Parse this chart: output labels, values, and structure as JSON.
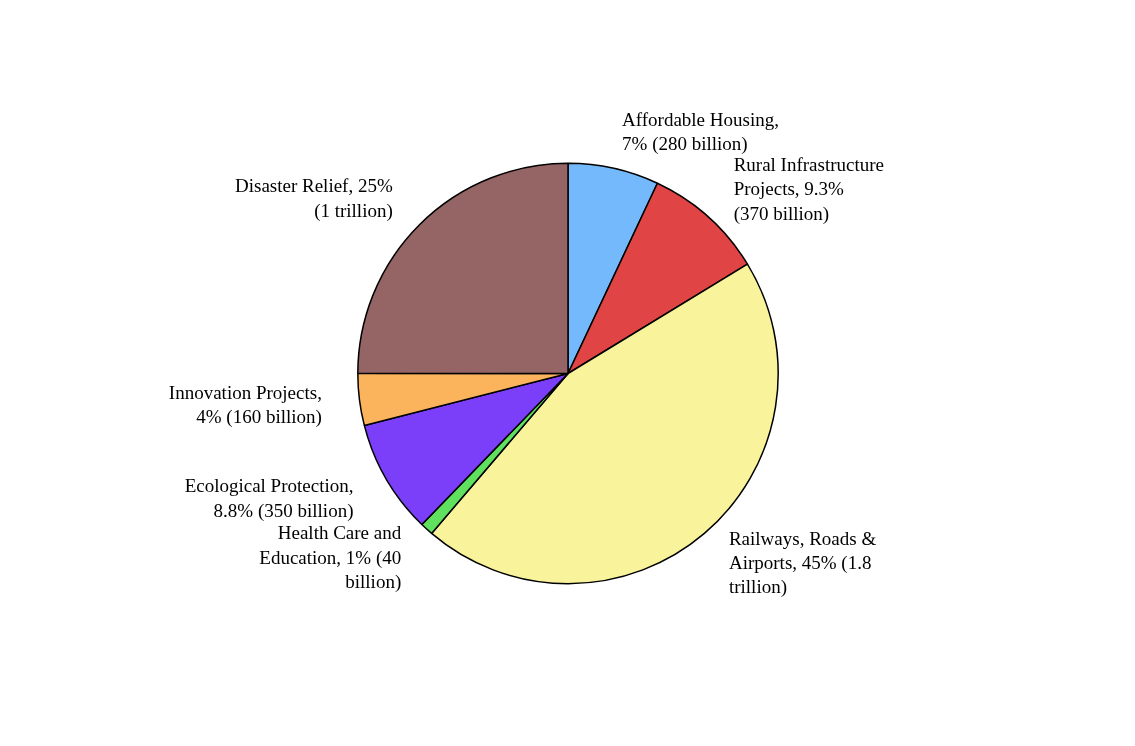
{
  "chart_data": {
    "type": "pie",
    "categories": [
      "Affordable Housing,\n7% (280 billion)",
      "Rural Infrastructure\nProjects, 9.3%\n(370 billion)",
      "Railways, Roads &\nAirports, 45% (1.8\ntrillion)",
      "Health Care and\nEducation, 1% (40\nbillion)",
      "Ecological Protection,\n8.8% (350 billion)",
      "Innovation Projects,\n4% (160 billion)",
      "Disaster Relief, 25%\n(1 trillion)"
    ],
    "values": [
      7,
      9.3,
      45,
      1,
      8.8,
      4,
      25
    ],
    "colors": [
      "#74b9fb",
      "#e04444",
      "#f9f39c",
      "#5fe05f",
      "#7b3ff9",
      "#fbb35c",
      "#956565"
    ]
  }
}
